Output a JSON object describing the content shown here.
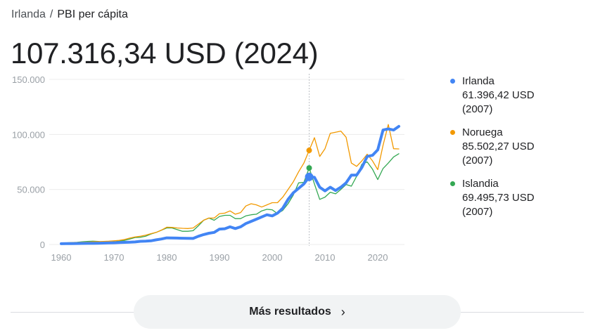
{
  "breadcrumb": {
    "country": "Irlanda",
    "separator": "/",
    "indicator": "PBI per cápita"
  },
  "headline": "107.316,34 USD (2024)",
  "colors": {
    "Irlanda": "#4285f4",
    "Noruega": "#f29900",
    "Islandia": "#34a853",
    "grid": "#ececec",
    "axis_text": "#9aa0a6"
  },
  "legend": [
    {
      "name": "Irlanda",
      "value": "61.396,42 USD",
      "year": "(2007)"
    },
    {
      "name": "Noruega",
      "value": "85.502,27 USD",
      "year": "(2007)"
    },
    {
      "name": "Islandia",
      "value": "69.495,73 USD",
      "year": "(2007)"
    }
  ],
  "more_button": {
    "label": "Más resultados",
    "icon": "chevron-right-icon"
  },
  "chart_data": {
    "type": "line",
    "title": "",
    "xlabel": "",
    "ylabel": "",
    "xlim": [
      1960,
      2024
    ],
    "ylim": [
      0,
      150000
    ],
    "x_ticks": [
      1960,
      1970,
      1980,
      1990,
      2000,
      2010,
      2020
    ],
    "x_tick_labels": [
      "1960",
      "1970",
      "1980",
      "1990",
      "2000",
      "2010",
      "2020"
    ],
    "y_ticks": [
      0,
      50000,
      100000,
      150000
    ],
    "y_tick_labels": [
      "0",
      "50.000",
      "100.000",
      "150.000"
    ],
    "grid": true,
    "legend_position": "right",
    "hover_year": 2007,
    "x_start": 1960,
    "series": [
      {
        "name": "Irlanda",
        "values": [
          700,
          750,
          800,
          900,
          950,
          1000,
          1050,
          1150,
          1250,
          1400,
          1500,
          1700,
          1900,
          2100,
          2300,
          2900,
          3000,
          3300,
          4200,
          5000,
          6000,
          5900,
          5800,
          5700,
          5600,
          5500,
          7500,
          9000,
          10200,
          11000,
          14000,
          14300,
          16000,
          14500,
          16000,
          19000,
          21000,
          23000,
          25000,
          27000,
          26000,
          28500,
          33000,
          41000,
          47000,
          51000,
          55000,
          61396,
          61000,
          52000,
          48700,
          52000,
          49000,
          52000,
          56000,
          63000,
          63000,
          70000,
          80000,
          81000,
          86000,
          104000,
          105000,
          104000,
          107316
        ]
      },
      {
        "name": "Noruega",
        "values": [
          1400,
          1500,
          1650,
          1800,
          2000,
          2200,
          2400,
          2600,
          2800,
          3000,
          3300,
          3700,
          4500,
          5800,
          6800,
          7500,
          8500,
          9800,
          11000,
          13000,
          15700,
          15500,
          15000,
          14700,
          14500,
          15000,
          18500,
          22000,
          24000,
          24000,
          28000,
          28500,
          30500,
          27500,
          29000,
          35000,
          37000,
          36000,
          34000,
          36000,
          38000,
          38000,
          43000,
          50000,
          57000,
          66000,
          74000,
          85502,
          97000,
          80000,
          87000,
          101000,
          102000,
          103000,
          97500,
          74000,
          71000,
          76000,
          82000,
          76000,
          68000,
          90000,
          109000,
          87000,
          86800
        ]
      },
      {
        "name": "Islandia",
        "values": [
          1400,
          1500,
          1700,
          2000,
          2400,
          2800,
          3000,
          2800,
          2000,
          1900,
          2500,
          3000,
          3700,
          5000,
          6300,
          6500,
          7500,
          9500,
          11000,
          13000,
          15000,
          15000,
          13500,
          12000,
          12000,
          12500,
          17000,
          22000,
          24000,
          22000,
          25500,
          26500,
          26500,
          23500,
          23500,
          26000,
          27000,
          27500,
          30500,
          32000,
          31500,
          28000,
          31000,
          37000,
          45000,
          56000,
          56500,
          69496,
          55000,
          41000,
          43000,
          47500,
          46000,
          50000,
          54500,
          53000,
          62000,
          73000,
          75000,
          68500,
          59000,
          69000,
          74000,
          79500,
          82500
        ]
      }
    ]
  }
}
